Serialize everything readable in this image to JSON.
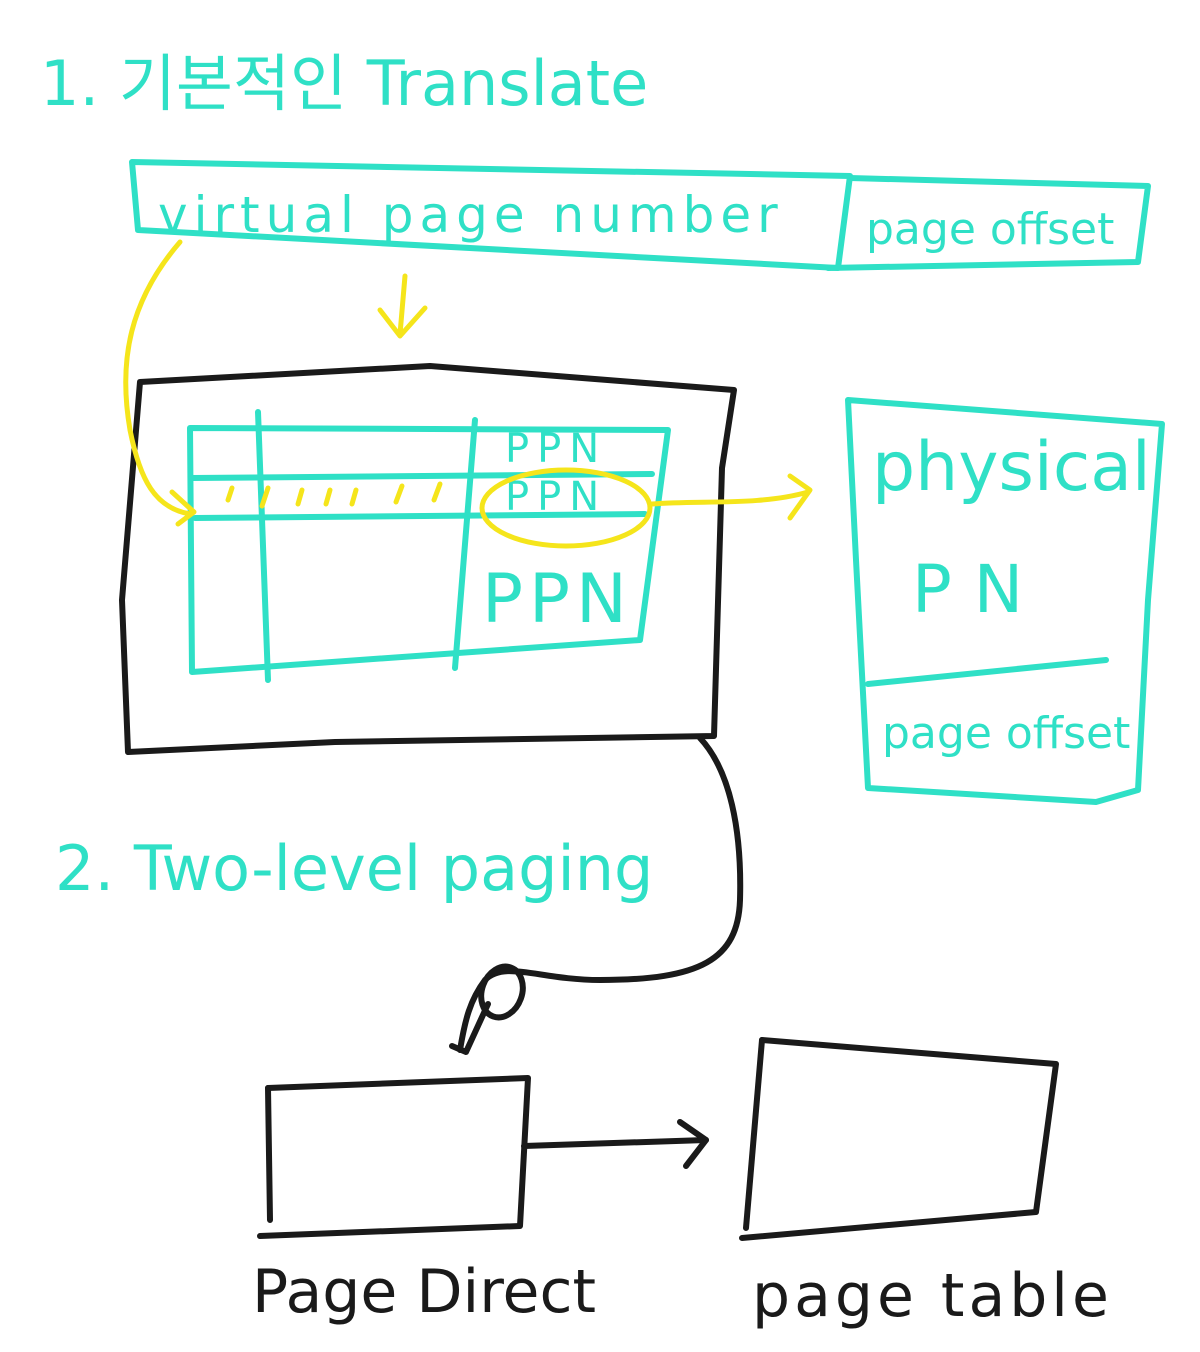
{
  "colors": {
    "teal": "#2fe0c6",
    "black": "#1a1a1a",
    "yellow": "#f5e51b",
    "background": "#ffffff"
  },
  "section1": {
    "title": "1. 기본적인 Translate",
    "virtual_address": {
      "vpn_label": "virtual page number",
      "offset_label": "page offset"
    },
    "page_table": {
      "rows": [
        "PPN",
        "PPN",
        "PPN"
      ]
    },
    "physical_address": {
      "ppn_label_line1": "physical",
      "ppn_label_line2": "PN",
      "offset_label": "page offset"
    }
  },
  "section2": {
    "title": "2. Two-level paging",
    "page_directory_label": "Page Direct",
    "page_table_label": "page table"
  }
}
